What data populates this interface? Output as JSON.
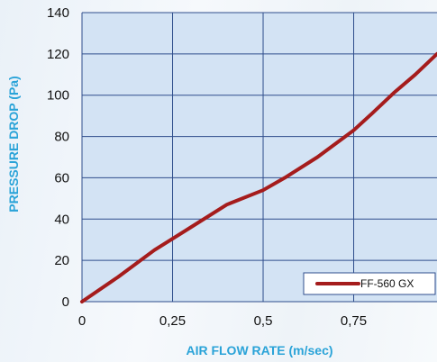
{
  "chart_data": {
    "type": "line",
    "title": "",
    "xlabel": "AIR FLOW RATE (m/sec)",
    "ylabel": "PRESSURE DROP (Pa)",
    "xlim": [
      0,
      0.98
    ],
    "ylim": [
      0,
      140
    ],
    "x_ticks": [
      0,
      0.25,
      0.5,
      0.75
    ],
    "x_tick_labels": [
      "0",
      "0,25",
      "0,5",
      "0,75"
    ],
    "y_ticks": [
      0,
      20,
      40,
      60,
      80,
      100,
      120,
      140
    ],
    "y_tick_labels": [
      "0",
      "20",
      "40",
      "60",
      "80",
      "100",
      "120",
      "140"
    ],
    "grid": true,
    "legend_position": "bottom-right",
    "series": [
      {
        "name": "FF-560 GX",
        "color": "#a51c1c",
        "x": [
          0,
          0.1,
          0.2,
          0.3,
          0.4,
          0.5,
          0.56,
          0.65,
          0.75,
          0.8,
          0.86,
          0.92,
          0.98
        ],
        "y": [
          0,
          12,
          25,
          36,
          47,
          54,
          60,
          70,
          83,
          91,
          101,
          110,
          120
        ]
      }
    ],
    "colors": {
      "plot_background": "#d3e3f4",
      "grid": "#2f4e8c",
      "axis_title": "#2aa3d8"
    }
  }
}
